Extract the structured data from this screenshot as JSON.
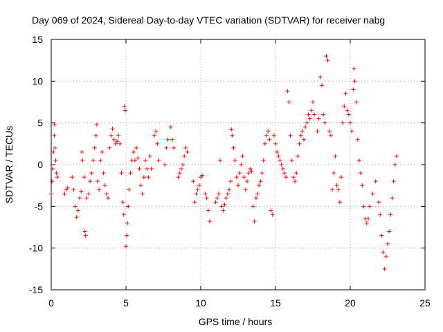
{
  "chart_data": {
    "type": "scatter",
    "title": "Day 069 of 2024, Sidereal Day-to-day VTEC variation (SDTVAR) for receiver nabg",
    "xlabel": "GPS time / hours",
    "ylabel": "SDTVAR / TECUs",
    "xlim": [
      0,
      25
    ],
    "ylim": [
      -15,
      15
    ],
    "xticks": [
      0,
      5,
      10,
      15,
      20,
      25
    ],
    "yticks": [
      -15,
      -10,
      -5,
      0,
      5,
      10,
      15
    ],
    "xtick_labels": [
      "0",
      "5",
      "10",
      "15",
      "20",
      "25"
    ],
    "ytick_labels": [
      "-15",
      "-10",
      "-5",
      "0",
      "5",
      "10",
      "15"
    ],
    "grid": true,
    "marker": "+",
    "series": [
      {
        "name": "SDTVAR",
        "color": "#ff0000",
        "points": [
          [
            0.0,
            -3.5
          ],
          [
            0.05,
            -2.0
          ],
          [
            0.1,
            -0.5
          ],
          [
            0.15,
            1.5
          ],
          [
            0.2,
            3.5
          ],
          [
            0.22,
            4.8
          ],
          [
            0.25,
            2.0
          ],
          [
            0.3,
            0.5
          ],
          [
            0.35,
            -1.0
          ],
          [
            0.4,
            -1.5
          ],
          [
            0.9,
            -3.5
          ],
          [
            1.0,
            -3.0
          ],
          [
            1.1,
            -2.8
          ],
          [
            1.4,
            -1.5
          ],
          [
            1.5,
            -3.0
          ],
          [
            1.6,
            -5.0
          ],
          [
            1.7,
            -6.3
          ],
          [
            1.8,
            -5.5
          ],
          [
            1.9,
            -4.0
          ],
          [
            2.0,
            -3.2
          ],
          [
            2.05,
            1.5
          ],
          [
            2.1,
            0.5
          ],
          [
            2.2,
            -1.5
          ],
          [
            2.25,
            -8.0
          ],
          [
            2.3,
            -8.5
          ],
          [
            2.35,
            -4.0
          ],
          [
            2.5,
            -3.5
          ],
          [
            2.6,
            -2.0
          ],
          [
            2.7,
            -1.0
          ],
          [
            2.8,
            0.5
          ],
          [
            2.9,
            2.0
          ],
          [
            3.0,
            3.5
          ],
          [
            3.05,
            4.8
          ],
          [
            3.1,
            -2.0
          ],
          [
            3.2,
            -3.0
          ],
          [
            3.3,
            0.5
          ],
          [
            3.4,
            1.5
          ],
          [
            3.5,
            -1.0
          ],
          [
            3.6,
            -2.5
          ],
          [
            3.7,
            -3.5
          ],
          [
            3.8,
            -4.0
          ],
          [
            3.9,
            2.0
          ],
          [
            4.0,
            3.5
          ],
          [
            4.1,
            4.3
          ],
          [
            4.2,
            3.0
          ],
          [
            4.3,
            2.5
          ],
          [
            4.4,
            2.8
          ],
          [
            4.5,
            3.5
          ],
          [
            4.6,
            2.5
          ],
          [
            4.7,
            -1.0
          ],
          [
            4.8,
            -4.5
          ],
          [
            4.85,
            -6.0
          ],
          [
            4.9,
            7.0
          ],
          [
            4.95,
            6.5
          ],
          [
            5.0,
            -9.8
          ],
          [
            5.05,
            -8.5
          ],
          [
            5.1,
            -7.0
          ],
          [
            5.15,
            -5.0
          ],
          [
            5.2,
            -3.0
          ],
          [
            5.3,
            -1.0
          ],
          [
            5.4,
            0.5
          ],
          [
            5.5,
            1.5
          ],
          [
            5.6,
            0.5
          ],
          [
            5.7,
            2.0
          ],
          [
            5.8,
            0.8
          ],
          [
            5.9,
            -0.5
          ],
          [
            6.0,
            -2.5
          ],
          [
            6.1,
            -3.5
          ],
          [
            6.2,
            -1.5
          ],
          [
            6.3,
            0.5
          ],
          [
            6.4,
            -0.5
          ],
          [
            6.5,
            -1.5
          ],
          [
            6.6,
            1.0
          ],
          [
            6.7,
            -0.5
          ],
          [
            6.9,
            3.5
          ],
          [
            7.0,
            4.0
          ],
          [
            7.1,
            2.5
          ],
          [
            7.2,
            0.5
          ],
          [
            7.6,
            0.0
          ],
          [
            7.7,
            2.0
          ],
          [
            7.8,
            3.0
          ],
          [
            8.0,
            4.5
          ],
          [
            8.1,
            3.0
          ],
          [
            8.2,
            2.0
          ],
          [
            8.5,
            -1.5
          ],
          [
            8.6,
            -1.0
          ],
          [
            8.7,
            -0.5
          ],
          [
            8.8,
            0.0
          ],
          [
            8.9,
            1.0
          ],
          [
            9.0,
            2.0
          ],
          [
            9.1,
            1.5
          ],
          [
            9.5,
            -2.0
          ],
          [
            9.6,
            -4.5
          ],
          [
            9.7,
            -3.5
          ],
          [
            9.8,
            -3.0
          ],
          [
            9.9,
            -2.5
          ],
          [
            10.0,
            -1.5
          ],
          [
            10.1,
            -1.3
          ],
          [
            10.3,
            -3.5
          ],
          [
            10.4,
            -4.0
          ],
          [
            10.5,
            -5.5
          ],
          [
            10.6,
            -6.8
          ],
          [
            11.0,
            -4.5
          ],
          [
            11.1,
            -4.0
          ],
          [
            11.2,
            -3.5
          ],
          [
            11.3,
            0.5
          ],
          [
            11.4,
            -5.0
          ],
          [
            11.5,
            -5.5
          ],
          [
            11.6,
            -4.8
          ],
          [
            11.7,
            -4.0
          ],
          [
            11.8,
            -3.5
          ],
          [
            11.9,
            -3.0
          ],
          [
            12.0,
            -2.0
          ],
          [
            12.05,
            4.2
          ],
          [
            12.1,
            3.5
          ],
          [
            12.2,
            2.0
          ],
          [
            12.3,
            0.5
          ],
          [
            12.4,
            -1.5
          ],
          [
            12.5,
            -2.5
          ],
          [
            12.6,
            -1.0
          ],
          [
            12.7,
            0.0
          ],
          [
            12.8,
            1.0
          ],
          [
            12.9,
            -1.5
          ],
          [
            13.0,
            -3.0
          ],
          [
            13.1,
            -2.0
          ],
          [
            13.2,
            -1.0
          ],
          [
            13.3,
            -0.5
          ],
          [
            13.4,
            -0.8
          ],
          [
            13.5,
            -5.0
          ],
          [
            13.6,
            -6.8
          ],
          [
            13.7,
            -4.0
          ],
          [
            13.8,
            -3.5
          ],
          [
            13.9,
            -2.5
          ],
          [
            14.0,
            -2.0
          ],
          [
            14.1,
            -1.0
          ],
          [
            14.2,
            0.5
          ],
          [
            14.3,
            2.5
          ],
          [
            14.4,
            3.5
          ],
          [
            14.5,
            4.0
          ],
          [
            14.6,
            3.0
          ],
          [
            14.7,
            -5.5
          ],
          [
            14.8,
            -6.0
          ],
          [
            14.9,
            3.5
          ],
          [
            15.0,
            2.5
          ],
          [
            15.1,
            1.5
          ],
          [
            15.2,
            1.0
          ],
          [
            15.3,
            0.5
          ],
          [
            15.4,
            0.0
          ],
          [
            15.5,
            -0.5
          ],
          [
            15.6,
            -1.0
          ],
          [
            15.7,
            -1.5
          ],
          [
            15.8,
            8.8
          ],
          [
            15.9,
            7.5
          ],
          [
            16.0,
            3.5
          ],
          [
            16.1,
            0.5
          ],
          [
            16.2,
            -1.5
          ],
          [
            16.3,
            -2.0
          ],
          [
            16.4,
            -1.0
          ],
          [
            16.5,
            1.0
          ],
          [
            16.6,
            2.5
          ],
          [
            16.7,
            3.5
          ],
          [
            16.8,
            4.0
          ],
          [
            16.9,
            3.0
          ],
          [
            17.0,
            4.5
          ],
          [
            17.1,
            5.0
          ],
          [
            17.2,
            6.0
          ],
          [
            17.3,
            5.5
          ],
          [
            17.4,
            6.5
          ],
          [
            17.5,
            7.5
          ],
          [
            17.6,
            6.0
          ],
          [
            17.8,
            4.0
          ],
          [
            17.9,
            5.5
          ],
          [
            18.0,
            10.5
          ],
          [
            18.1,
            9.5
          ],
          [
            18.2,
            6.0
          ],
          [
            18.3,
            5.0
          ],
          [
            18.4,
            13.0
          ],
          [
            18.5,
            12.5
          ],
          [
            18.6,
            4.0
          ],
          [
            18.7,
            3.5
          ],
          [
            18.8,
            -3.0
          ],
          [
            18.9,
            -1.0
          ],
          [
            19.0,
            1.0
          ],
          [
            19.1,
            -2.5
          ],
          [
            19.2,
            -3.0
          ],
          [
            19.3,
            -4.5
          ],
          [
            19.4,
            -1.5
          ],
          [
            19.5,
            5.0
          ],
          [
            19.6,
            7.0
          ],
          [
            19.7,
            8.5
          ],
          [
            19.8,
            6.5
          ],
          [
            19.9,
            6.0
          ],
          [
            20.0,
            5.0
          ],
          [
            20.1,
            4.0
          ],
          [
            20.2,
            9.0
          ],
          [
            20.25,
            11.5
          ],
          [
            20.3,
            10.0
          ],
          [
            20.4,
            7.5
          ],
          [
            20.5,
            3.0
          ],
          [
            20.6,
            0.5
          ],
          [
            20.7,
            -1.0
          ],
          [
            20.8,
            -2.5
          ],
          [
            20.9,
            -5.0
          ],
          [
            21.0,
            -6.5
          ],
          [
            21.1,
            -7.0
          ],
          [
            21.2,
            -6.5
          ],
          [
            21.3,
            -5.0
          ],
          [
            21.5,
            -3.5
          ],
          [
            21.7,
            -2.0
          ],
          [
            21.9,
            -4.5
          ],
          [
            22.0,
            -6.0
          ],
          [
            22.1,
            -8.5
          ],
          [
            22.2,
            -10.5
          ],
          [
            22.3,
            -12.5
          ],
          [
            22.4,
            -11.0
          ],
          [
            22.5,
            -9.5
          ],
          [
            22.6,
            -8.0
          ],
          [
            22.7,
            -6.0
          ],
          [
            22.8,
            -4.0
          ],
          [
            22.9,
            -2.0
          ],
          [
            23.0,
            0.0
          ],
          [
            23.1,
            1.0
          ]
        ]
      }
    ]
  }
}
